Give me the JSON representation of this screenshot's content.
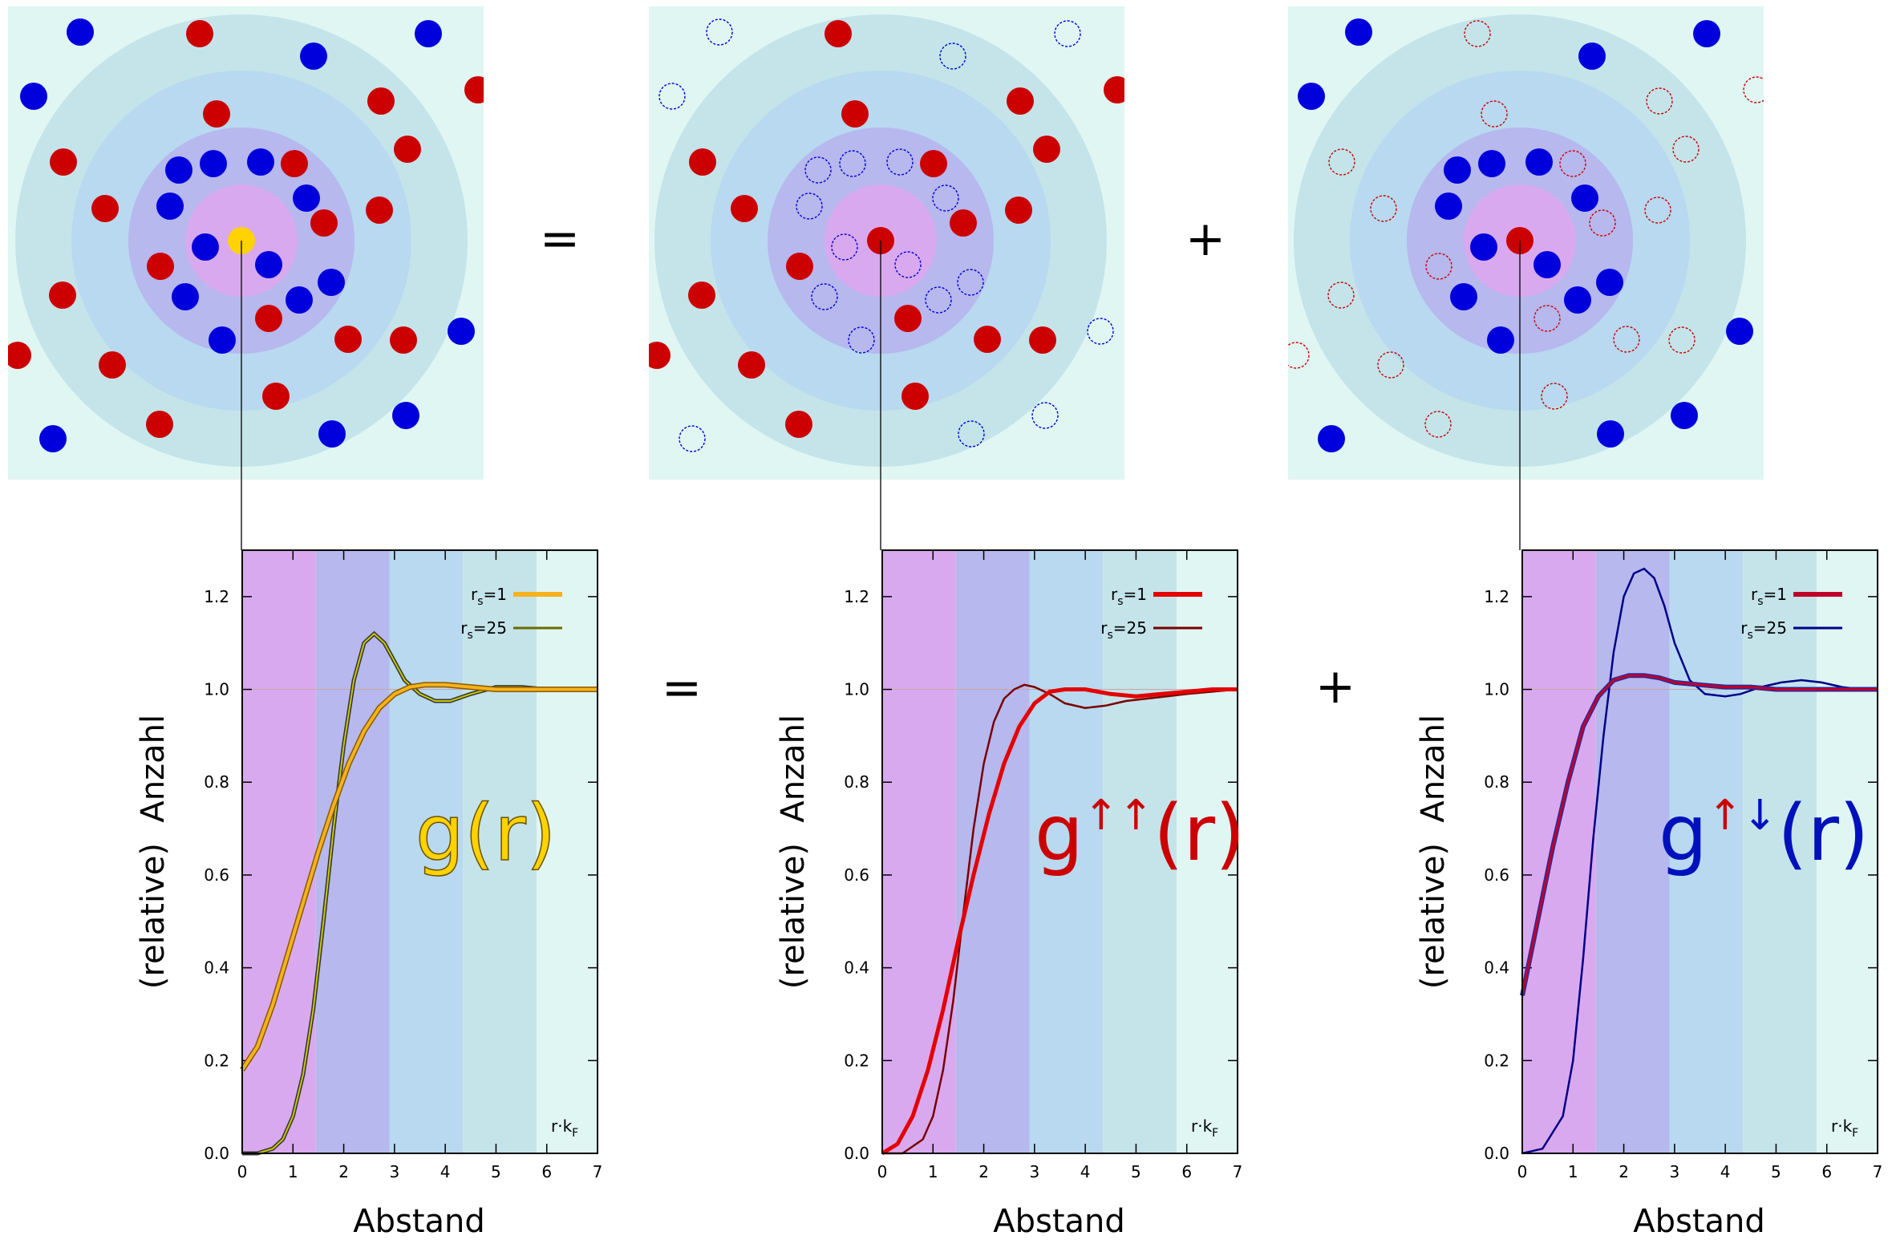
{
  "operators": {
    "equals": "=",
    "plus": "+"
  },
  "colors": {
    "background": "#dff6f3",
    "ring_outer": "#c4e4ea",
    "ring_mid": "#b8d9ef",
    "ring_inner": "#b6b8ee",
    "core": "#d9a9ef",
    "spin_up": "#cc0000",
    "spin_down": "#0000dd",
    "reference": "#ffd200"
  },
  "panels": [
    {
      "id": "total",
      "reference_icon": "yellow-particle",
      "func_text": "g(r)",
      "arrows": "",
      "func_color": "#ffd200",
      "ylabel": "(relative)  Anzahl",
      "xlabel": "Abstand",
      "unit_label": "r·kF",
      "legend": [
        {
          "label": "rs=1",
          "color": "#f5b21c"
        },
        {
          "label": "rs=25",
          "color": "#6b6b00"
        }
      ]
    },
    {
      "id": "parallel",
      "reference_icon": "red-particle",
      "func_text": "g(r)",
      "arrows": "↑↑",
      "func_color": "#cc0000",
      "ylabel": "(relative)  Anzahl",
      "xlabel": "Abstand",
      "unit_label": "r·kF",
      "legend": [
        {
          "label": "rs=1",
          "color": "#e40000"
        },
        {
          "label": "rs=25",
          "color": "#7a0000"
        }
      ]
    },
    {
      "id": "antiparallel",
      "reference_icon": "red-particle",
      "func_text": "g(r)",
      "arrows": "↑↓",
      "func_color": "#0011bb",
      "ylabel": "(relative)  Anzahl",
      "xlabel": "Abstand",
      "unit_label": "r·kF",
      "legend": [
        {
          "label": "rs=1",
          "color": "#c0002a"
        },
        {
          "label": "rs=25",
          "color": "#000088"
        }
      ]
    }
  ],
  "chart_data": [
    {
      "type": "line",
      "xlim": [
        0,
        7
      ],
      "ylim": [
        0,
        1.3
      ],
      "xticks": [
        0,
        1,
        2,
        3,
        4,
        5,
        6,
        7
      ],
      "yticks": [
        0.0,
        0.2,
        0.4,
        0.6,
        0.8,
        1.0,
        1.2
      ],
      "xlabel": "Abstand",
      "ylabel": "(relative)  Anzahl",
      "legend_position": "top-right",
      "series": [
        {
          "name": "rs=1",
          "x": [
            0,
            0.3,
            0.6,
            0.9,
            1.2,
            1.5,
            1.8,
            2.1,
            2.4,
            2.7,
            3.0,
            3.3,
            3.6,
            4.0,
            4.5,
            5.0,
            5.5,
            6.0,
            6.5,
            7.0
          ],
          "y": [
            0.18,
            0.23,
            0.32,
            0.43,
            0.54,
            0.65,
            0.75,
            0.84,
            0.91,
            0.96,
            0.99,
            1.005,
            1.01,
            1.01,
            1.005,
            1.0,
            1.0,
            1.0,
            1.0,
            1.0
          ]
        },
        {
          "name": "rs=25",
          "x": [
            0,
            0.3,
            0.6,
            0.8,
            1.0,
            1.2,
            1.4,
            1.6,
            1.8,
            2.0,
            2.2,
            2.4,
            2.6,
            2.8,
            3.0,
            3.2,
            3.5,
            3.8,
            4.1,
            4.5,
            5.0,
            5.5,
            6.0,
            6.5,
            7.0
          ],
          "y": [
            0.0,
            0.0,
            0.01,
            0.03,
            0.08,
            0.17,
            0.31,
            0.5,
            0.7,
            0.88,
            1.02,
            1.1,
            1.12,
            1.1,
            1.06,
            1.02,
            0.99,
            0.975,
            0.975,
            0.99,
            1.005,
            1.005,
            1.0,
            1.0,
            1.0
          ]
        }
      ]
    },
    {
      "type": "line",
      "xlim": [
        0,
        7
      ],
      "ylim": [
        0,
        1.3
      ],
      "xticks": [
        0,
        1,
        2,
        3,
        4,
        5,
        6,
        7
      ],
      "yticks": [
        0.0,
        0.2,
        0.4,
        0.6,
        0.8,
        1.0,
        1.2
      ],
      "xlabel": "Abstand",
      "ylabel": "(relative)  Anzahl",
      "legend_position": "top-right",
      "series": [
        {
          "name": "rs=1",
          "x": [
            0,
            0.3,
            0.6,
            0.9,
            1.2,
            1.5,
            1.8,
            2.1,
            2.4,
            2.7,
            3.0,
            3.3,
            3.6,
            4.0,
            4.5,
            5.0,
            5.5,
            6.0,
            6.5,
            7.0
          ],
          "y": [
            0.0,
            0.02,
            0.08,
            0.18,
            0.31,
            0.46,
            0.6,
            0.73,
            0.84,
            0.92,
            0.97,
            0.995,
            1.0,
            1.0,
            0.99,
            0.985,
            0.99,
            0.995,
            1.0,
            1.0
          ]
        },
        {
          "name": "rs=25",
          "x": [
            0,
            0.4,
            0.8,
            1.0,
            1.2,
            1.4,
            1.6,
            1.8,
            2.0,
            2.2,
            2.4,
            2.6,
            2.8,
            3.0,
            3.3,
            3.6,
            4.0,
            4.4,
            4.8,
            5.2,
            5.6,
            6.0,
            6.5,
            7.0
          ],
          "y": [
            0.0,
            0.0,
            0.03,
            0.08,
            0.18,
            0.33,
            0.52,
            0.7,
            0.84,
            0.93,
            0.98,
            1.0,
            1.01,
            1.005,
            0.99,
            0.97,
            0.96,
            0.965,
            0.975,
            0.98,
            0.985,
            0.99,
            0.995,
            1.0
          ]
        }
      ]
    },
    {
      "type": "line",
      "xlim": [
        0,
        7
      ],
      "ylim": [
        0,
        1.3
      ],
      "xticks": [
        0,
        1,
        2,
        3,
        4,
        5,
        6,
        7
      ],
      "yticks": [
        0.0,
        0.2,
        0.4,
        0.6,
        0.8,
        1.0,
        1.2
      ],
      "xlabel": "Abstand",
      "ylabel": "(relative)  Anzahl",
      "legend_position": "top-right",
      "series": [
        {
          "name": "rs=1",
          "x": [
            0,
            0.3,
            0.6,
            0.9,
            1.2,
            1.5,
            1.8,
            2.1,
            2.4,
            2.7,
            3.0,
            3.5,
            4.0,
            4.5,
            5.0,
            5.5,
            6.0,
            6.5,
            7.0
          ],
          "y": [
            0.34,
            0.5,
            0.66,
            0.8,
            0.92,
            0.985,
            1.02,
            1.03,
            1.03,
            1.025,
            1.015,
            1.01,
            1.005,
            1.005,
            1.0,
            1.0,
            1.0,
            1.0,
            1.0
          ]
        },
        {
          "name": "rs=25",
          "x": [
            0,
            0.4,
            0.8,
            1.0,
            1.2,
            1.4,
            1.6,
            1.8,
            2.0,
            2.2,
            2.4,
            2.6,
            2.8,
            3.0,
            3.3,
            3.6,
            4.0,
            4.3,
            4.7,
            5.1,
            5.5,
            5.9,
            6.3,
            6.7,
            7.0
          ],
          "y": [
            0.0,
            0.01,
            0.08,
            0.2,
            0.42,
            0.68,
            0.9,
            1.08,
            1.2,
            1.25,
            1.26,
            1.24,
            1.18,
            1.1,
            1.02,
            0.99,
            0.985,
            0.99,
            1.005,
            1.015,
            1.02,
            1.015,
            1.005,
            1.0,
            1.0
          ]
        }
      ]
    }
  ]
}
